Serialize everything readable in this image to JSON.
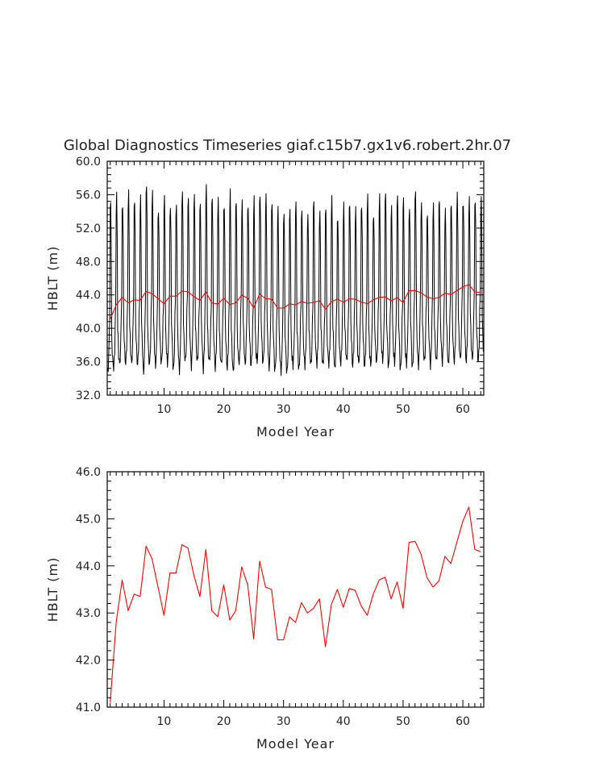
{
  "colors": {
    "monthly": "#000000",
    "annual": "#ff0000",
    "axis": "#000000",
    "text": "#222222"
  },
  "chart_data": [
    {
      "type": "line",
      "title": "Global Diagnostics Timeseries giaf.c15b7.gx1v6.robert.2hr.07",
      "xlabel": "Model Year",
      "ylabel": "HBLT (m)",
      "xlim": [
        0.5,
        63.5
      ],
      "ylim": [
        32.0,
        60.0
      ],
      "xticks": [
        10,
        20,
        30,
        40,
        50,
        60
      ],
      "xtick_labels": [
        "10",
        "20",
        "30",
        "40",
        "50",
        "60"
      ],
      "yticks": [
        32.0,
        36.0,
        40.0,
        44.0,
        48.0,
        52.0,
        56.0,
        60.0
      ],
      "ytick_labels": [
        "32.0",
        "36.0",
        "40.0",
        "44.0",
        "48.0",
        "52.0",
        "56.0",
        "60.0"
      ],
      "series": [
        {
          "name": "monthly",
          "color": "#000000",
          "x_start": 0.5,
          "x_step": 0.08333,
          "seasonal_cycle": [
            -6.5,
            -7.0,
            -6.2,
            -5.0,
            -2.0,
            0.0,
            11.5,
            13.0,
            8.0,
            -2.5,
            -4.0,
            -5.5
          ],
          "annual_peak_maxima": [
            55.5,
            55.8,
            55.0,
            56.0,
            55.6,
            55.4,
            57.5,
            56.0,
            54.3,
            55.5,
            54.7,
            54.5,
            56.5,
            55.5,
            56.0,
            55.0,
            57.0,
            55.8,
            55.3,
            54.8,
            56.2,
            55.5,
            54.8,
            55.0,
            55.3,
            56.3,
            55.6,
            55.3,
            54.2,
            54.0,
            54.0,
            55.3,
            54.0,
            53.6,
            55.3,
            53.8,
            54.5,
            55.5,
            53.3,
            54.6,
            55.2,
            54.0,
            55.0,
            55.5,
            53.8,
            55.6,
            56.6,
            54.3,
            56.2,
            55.4,
            54.4,
            56.3,
            55.0,
            53.6,
            54.8,
            55.5,
            54.0,
            55.1,
            55.8,
            55.2,
            55.2,
            55.6,
            55.2
          ],
          "annual_trough_minima": [
            34.7,
            35.2,
            35.6,
            35.8,
            35.8,
            35.6,
            34.6,
            35.6,
            35.5,
            35.8,
            35.8,
            35.0,
            35.0,
            36.0,
            35.5,
            36.0,
            35.1,
            36.0,
            35.3,
            35.6,
            35.3,
            34.7,
            35.8,
            35.6,
            35.5,
            35.9,
            35.8,
            35.2,
            34.9,
            34.8,
            34.6,
            35.6,
            35.0,
            35.6,
            35.6,
            35.8,
            35.6,
            35.7,
            35.0,
            35.8,
            36.0,
            35.5,
            35.8,
            35.4,
            35.6,
            35.9,
            36.1,
            35.3,
            35.9,
            35.0,
            35.8,
            35.2,
            35.6,
            36.0,
            35.6,
            36.0,
            35.9,
            35.5,
            36.0,
            36.2,
            36.0,
            36.2,
            36.0
          ]
        },
        {
          "name": "annual mean",
          "color": "#ff0000",
          "x": [
            1,
            2,
            3,
            4,
            5,
            6,
            7,
            8,
            9,
            10,
            11,
            12,
            13,
            14,
            15,
            16,
            17,
            18,
            19,
            20,
            21,
            22,
            23,
            24,
            25,
            26,
            27,
            28,
            29,
            30,
            31,
            32,
            33,
            34,
            35,
            36,
            37,
            38,
            39,
            40,
            41,
            42,
            43,
            44,
            45,
            46,
            47,
            48,
            49,
            50,
            51,
            52,
            53,
            54,
            55,
            56,
            57,
            58,
            59,
            60,
            61,
            62,
            63
          ],
          "values": [
            41.1,
            42.8,
            43.7,
            43.05,
            43.4,
            43.35,
            44.42,
            44.15,
            43.55,
            42.95,
            43.85,
            43.85,
            44.45,
            44.38,
            43.8,
            43.35,
            44.35,
            43.05,
            42.92,
            43.6,
            42.85,
            43.05,
            43.98,
            43.6,
            42.45,
            44.1,
            43.55,
            43.5,
            42.43,
            42.43,
            42.92,
            42.8,
            43.22,
            43.0,
            43.1,
            43.3,
            42.28,
            43.18,
            43.5,
            43.12,
            43.52,
            43.48,
            43.15,
            42.95,
            43.4,
            43.7,
            43.76,
            43.3,
            43.66,
            43.1,
            44.5,
            44.52,
            44.25,
            43.75,
            43.55,
            43.68,
            44.2,
            44.05,
            44.5,
            44.95,
            45.25,
            44.35,
            44.3
          ]
        }
      ]
    },
    {
      "type": "line",
      "title": "",
      "xlabel": "Model Year",
      "ylabel": "HBLT (m)",
      "xlim": [
        0.5,
        63.5
      ],
      "ylim": [
        41.0,
        46.0
      ],
      "xticks": [
        10,
        20,
        30,
        40,
        50,
        60
      ],
      "xtick_labels": [
        "10",
        "20",
        "30",
        "40",
        "50",
        "60"
      ],
      "yticks": [
        41.0,
        42.0,
        43.0,
        44.0,
        45.0,
        46.0
      ],
      "ytick_labels": [
        "41.0",
        "42.0",
        "43.0",
        "44.0",
        "45.0",
        "46.0"
      ],
      "series": [
        {
          "name": "annual mean",
          "color": "#ff0000",
          "x": [
            1,
            2,
            3,
            4,
            5,
            6,
            7,
            8,
            9,
            10,
            11,
            12,
            13,
            14,
            15,
            16,
            17,
            18,
            19,
            20,
            21,
            22,
            23,
            24,
            25,
            26,
            27,
            28,
            29,
            30,
            31,
            32,
            33,
            34,
            35,
            36,
            37,
            38,
            39,
            40,
            41,
            42,
            43,
            44,
            45,
            46,
            47,
            48,
            49,
            50,
            51,
            52,
            53,
            54,
            55,
            56,
            57,
            58,
            59,
            60,
            61,
            62,
            63
          ],
          "values": [
            41.1,
            42.8,
            43.7,
            43.05,
            43.4,
            43.35,
            44.42,
            44.15,
            43.55,
            42.95,
            43.85,
            43.85,
            44.45,
            44.38,
            43.8,
            43.35,
            44.35,
            43.05,
            42.92,
            43.6,
            42.85,
            43.05,
            43.98,
            43.6,
            42.45,
            44.1,
            43.55,
            43.5,
            42.43,
            42.43,
            42.92,
            42.8,
            43.22,
            43.0,
            43.1,
            43.3,
            42.28,
            43.18,
            43.5,
            43.12,
            43.52,
            43.48,
            43.15,
            42.95,
            43.4,
            43.7,
            43.76,
            43.3,
            43.66,
            43.1,
            44.5,
            44.52,
            44.25,
            43.75,
            43.55,
            43.68,
            44.2,
            44.05,
            44.5,
            44.95,
            45.25,
            44.35,
            44.3
          ]
        }
      ]
    }
  ]
}
